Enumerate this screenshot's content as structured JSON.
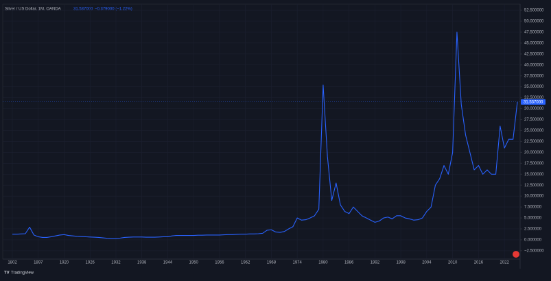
{
  "header": {
    "symbol": "Silver / US Dollar, 1M, OANDA",
    "last": "31.537000",
    "change": "−0.379000 (−1.22%)"
  },
  "footer": {
    "brand": "TradingView"
  },
  "chart_data": {
    "type": "line",
    "categories": [
      "1802",
      null,
      null,
      null,
      null,
      null,
      "1897",
      null,
      null,
      null,
      null,
      null,
      "1920",
      null,
      null,
      null,
      null,
      null,
      "1926",
      null,
      null,
      null,
      null,
      null,
      "1932",
      null,
      null,
      null,
      null,
      null,
      "1938",
      null,
      null,
      null,
      null,
      null,
      "1944",
      null,
      null,
      null,
      null,
      null,
      "1950",
      null,
      null,
      null,
      null,
      null,
      "1956",
      null,
      null,
      null,
      null,
      null,
      "1962",
      null,
      null,
      null,
      null,
      null,
      "1968",
      null,
      null,
      null,
      null,
      null,
      "1974",
      null,
      null,
      null,
      null,
      null,
      "1980",
      null,
      null,
      null,
      null,
      null,
      "1986",
      null,
      null,
      null,
      null,
      null,
      "1992",
      null,
      null,
      null,
      null,
      null,
      "1998",
      null,
      null,
      null,
      null,
      null,
      "2004",
      null,
      null,
      null,
      null,
      null,
      "2010",
      null,
      null,
      null,
      null,
      null,
      "2016",
      null,
      null,
      null,
      null,
      null,
      "2022",
      null,
      null,
      null
    ],
    "series": [
      {
        "name": "Silver / US Dollar",
        "color": "#2962ff",
        "values": [
          1.3,
          1.3,
          1.35,
          1.4,
          2.9,
          1.1,
          0.7,
          0.55,
          0.55,
          0.7,
          0.9,
          1.1,
          1.2,
          1.0,
          0.9,
          0.8,
          0.75,
          0.7,
          0.65,
          0.6,
          0.55,
          0.45,
          0.35,
          0.3,
          0.3,
          0.4,
          0.55,
          0.6,
          0.65,
          0.65,
          0.65,
          0.6,
          0.6,
          0.6,
          0.65,
          0.7,
          0.7,
          0.9,
          1.0,
          1.0,
          1.0,
          1.0,
          1.0,
          1.05,
          1.05,
          1.1,
          1.1,
          1.1,
          1.1,
          1.15,
          1.2,
          1.2,
          1.25,
          1.3,
          1.3,
          1.35,
          1.35,
          1.4,
          1.5,
          2.2,
          2.3,
          1.8,
          1.7,
          1.9,
          2.5,
          3.0,
          5.0,
          4.5,
          4.6,
          5.0,
          5.5,
          7.0,
          35.4,
          19,
          9,
          13,
          8,
          6.5,
          6,
          7.5,
          6.5,
          5.5,
          5,
          4.5,
          4,
          4.3,
          5,
          5.2,
          4.8,
          5.5,
          5.5,
          5,
          4.8,
          4.5,
          4.6,
          5,
          6.5,
          7.5,
          12.5,
          14,
          17,
          15,
          20,
          47.5,
          31,
          24,
          20,
          16,
          17,
          15,
          16,
          15,
          15,
          26,
          21,
          23,
          23,
          31.537
        ]
      }
    ],
    "last_value": 31.537,
    "ylim": [
      -4.4,
      53.6
    ],
    "yticks": [
      {
        "value": 52.5,
        "label": "52.500000"
      },
      {
        "value": 50,
        "label": "50.000000"
      },
      {
        "value": 47.5,
        "label": "47.500000"
      },
      {
        "value": 45,
        "label": "45.000000"
      },
      {
        "value": 42.5,
        "label": "42.500000"
      },
      {
        "value": 40,
        "label": "40.000000"
      },
      {
        "value": 37.5,
        "label": "37.500000"
      },
      {
        "value": 35,
        "label": "35.000000"
      },
      {
        "value": 32.5,
        "label": "32.500000"
      },
      {
        "value": 30,
        "label": "30.000000"
      },
      {
        "value": 27.5,
        "label": "27.500000"
      },
      {
        "value": 25,
        "label": "25.000000"
      },
      {
        "value": 22.5,
        "label": "22.500000"
      },
      {
        "value": 20,
        "label": "20.000000"
      },
      {
        "value": 17.5,
        "label": "17.500000"
      },
      {
        "value": 15,
        "label": "15.000000"
      },
      {
        "value": 12.5,
        "label": "12.500000"
      },
      {
        "value": 10,
        "label": "10.000000"
      },
      {
        "value": 7.5,
        "label": "7.500000"
      },
      {
        "value": 5,
        "label": "5.000000"
      },
      {
        "value": 2.5,
        "label": "2.500000"
      },
      {
        "value": 0,
        "label": "0.000000"
      },
      {
        "value": -2.5,
        "label": "−2.500000"
      }
    ],
    "grid": true
  }
}
